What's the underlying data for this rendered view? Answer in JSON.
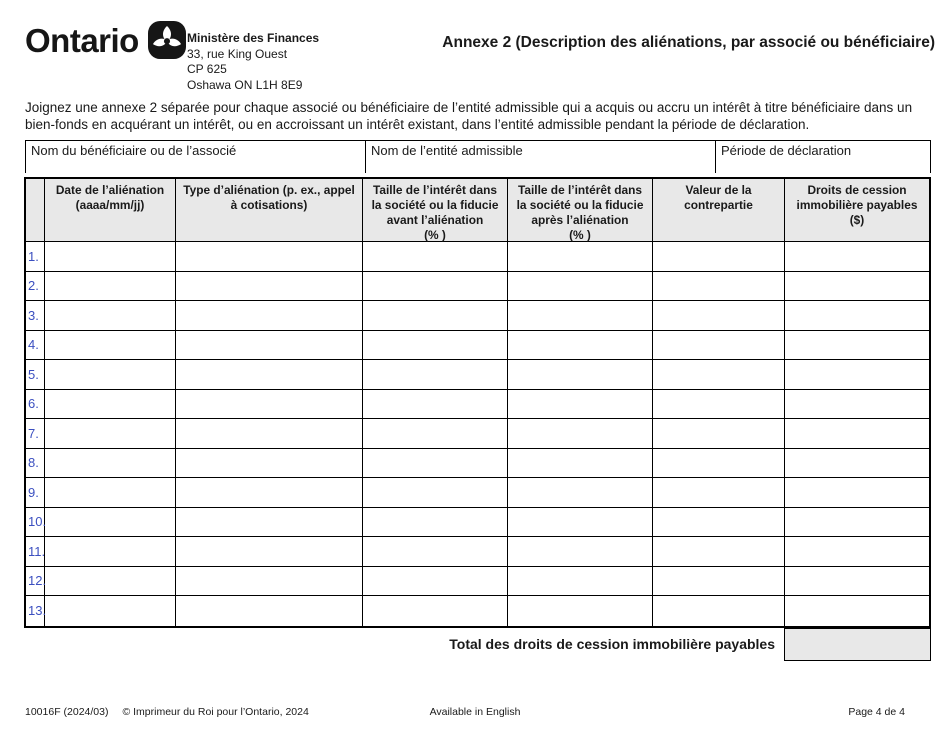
{
  "logo": {
    "wordmark": "Ontario"
  },
  "ministry": {
    "name": "Ministère des Finances",
    "address_line1": "33, rue King Ouest",
    "address_line2": "CP 625",
    "address_line3": "Oshawa ON  L1H 8E9"
  },
  "title": "Annexe 2 (Description des aliénations, par associé ou bénéficiaire)",
  "instruction": "Joignez une annexe 2 séparée pour chaque associé ou bénéficiaire de l’entité admissible qui a acquis ou accru un intérêt à titre bénéficiaire dans un bien-fonds en acquérant un intérêt, ou en accroissant un intérêt existant, dans l’entité admissible pendant la période de déclaration.",
  "fields": [
    {
      "label": "Nom du bénéficiaire ou de l’associé",
      "value": ""
    },
    {
      "label": "Nom de l’entité admissible",
      "value": ""
    },
    {
      "label": "Période de déclaration",
      "value": ""
    }
  ],
  "table": {
    "headers": [
      "",
      "Date de l’aliénation\n(aaaa/mm/jj)",
      "Type d’aliénation (p. ex., appel\nà cotisations)",
      "Taille de l’intérêt dans\nla société ou la fiducie\navant l’aliénation\n(% )",
      "Taille de l’intérêt dans\nla société ou la fiducie\naprès l’aliénation\n(% )",
      "Valeur de la\ncontrepartie",
      "Droits de cession\nimmobilière payables\n($)"
    ],
    "rows": [
      {
        "num": "1.",
        "date": "",
        "type": "",
        "avant": "",
        "apres": "",
        "valeur": "",
        "droits": ""
      },
      {
        "num": "2.",
        "date": "",
        "type": "",
        "avant": "",
        "apres": "",
        "valeur": "",
        "droits": ""
      },
      {
        "num": "3.",
        "date": "",
        "type": "",
        "avant": "",
        "apres": "",
        "valeur": "",
        "droits": ""
      },
      {
        "num": "4.",
        "date": "",
        "type": "",
        "avant": "",
        "apres": "",
        "valeur": "",
        "droits": ""
      },
      {
        "num": "5.",
        "date": "",
        "type": "",
        "avant": "",
        "apres": "",
        "valeur": "",
        "droits": ""
      },
      {
        "num": "6.",
        "date": "",
        "type": "",
        "avant": "",
        "apres": "",
        "valeur": "",
        "droits": ""
      },
      {
        "num": "7.",
        "date": "",
        "type": "",
        "avant": "",
        "apres": "",
        "valeur": "",
        "droits": ""
      },
      {
        "num": "8.",
        "date": "",
        "type": "",
        "avant": "",
        "apres": "",
        "valeur": "",
        "droits": ""
      },
      {
        "num": "9.",
        "date": "",
        "type": "",
        "avant": "",
        "apres": "",
        "valeur": "",
        "droits": ""
      },
      {
        "num": "10.",
        "date": "",
        "type": "",
        "avant": "",
        "apres": "",
        "valeur": "",
        "droits": ""
      },
      {
        "num": "11.",
        "date": "",
        "type": "",
        "avant": "",
        "apres": "",
        "valeur": "",
        "droits": ""
      },
      {
        "num": "12.",
        "date": "",
        "type": "",
        "avant": "",
        "apres": "",
        "valeur": "",
        "droits": ""
      },
      {
        "num": "13.",
        "date": "",
        "type": "",
        "avant": "",
        "apres": "",
        "valeur": "",
        "droits": ""
      }
    ]
  },
  "total": {
    "label": "Total des droits de cession immobilière payables",
    "value": ""
  },
  "footer": {
    "form_number": "10016F (2024/03)",
    "copyright": "© Imprimeur du Roi pour l’Ontario, 2024",
    "language_note": "Available in English",
    "page": "Page 4 de 4"
  },
  "colors": {
    "header_fill": "#e8e8e8",
    "row_number_blue": "#3b4fc0",
    "border": "#000000"
  }
}
